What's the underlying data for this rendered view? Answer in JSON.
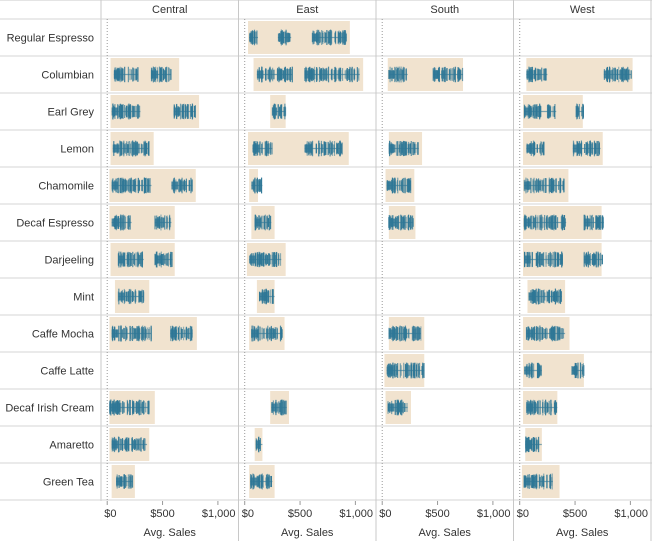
{
  "chart_data": {
    "type": "strip",
    "regions": [
      "Central",
      "East",
      "South",
      "West"
    ],
    "products": [
      "Regular Espresso",
      "Columbian",
      "Earl Grey",
      "Lemon",
      "Chamomile",
      "Decaf Espresso",
      "Darjeeling",
      "Mint",
      "Caffe Mocha",
      "Caffe Latte",
      "Decaf Irish Cream",
      "Amaretto",
      "Green Tea"
    ],
    "xlabel": "Avg. Sales",
    "xlim": [
      -20,
      1150
    ],
    "xticks": [
      0,
      500,
      1000
    ],
    "xtick_labels": [
      "$0",
      "$500",
      "$1,000"
    ],
    "band_color": "#f1e3cf",
    "mark_color": "#2e7796",
    "reference_line": 0,
    "ranges": {
      "Central": [
        null,
        [
          30,
          650
        ],
        [
          30,
          830
        ],
        [
          30,
          420
        ],
        [
          20,
          800
        ],
        [
          20,
          610
        ],
        [
          30,
          610
        ],
        [
          70,
          380
        ],
        [
          20,
          810
        ],
        null,
        [
          20,
          430
        ],
        [
          20,
          380
        ],
        [
          40,
          250
        ]
      ],
      "East": [
        [
          30,
          950
        ],
        [
          80,
          1070
        ],
        [
          230,
          370
        ],
        [
          30,
          940
        ],
        [
          40,
          120
        ],
        [
          60,
          270
        ],
        [
          20,
          370
        ],
        [
          110,
          270
        ],
        [
          40,
          360
        ],
        null,
        [
          230,
          400
        ],
        [
          90,
          160
        ],
        [
          40,
          270
        ]
      ],
      "South": [
        null,
        [
          50,
          730
        ],
        null,
        [
          60,
          360
        ],
        [
          30,
          290
        ],
        [
          60,
          300
        ],
        null,
        null,
        [
          60,
          380
        ],
        [
          20,
          380
        ],
        [
          30,
          260
        ],
        null,
        null
      ],
      "West": [
        [
          null,
          null
        ],
        [
          60,
          1020
        ],
        [
          30,
          570
        ],
        [
          30,
          750
        ],
        [
          30,
          440
        ],
        [
          30,
          740
        ],
        [
          30,
          740
        ],
        [
          70,
          410
        ],
        [
          30,
          450
        ],
        [
          30,
          580
        ],
        [
          30,
          340
        ],
        [
          50,
          200
        ],
        [
          20,
          360
        ]
      ]
    },
    "clusters": {
      "Central": [
        [],
        [
          [
            60,
            280
          ],
          [
            400,
            580
          ]
        ],
        [
          [
            40,
            300
          ],
          [
            600,
            800
          ]
        ],
        [
          [
            50,
            380
          ]
        ],
        [
          [
            40,
            400
          ],
          [
            580,
            770
          ]
        ],
        [
          [
            40,
            220
          ],
          [
            430,
            580
          ]
        ],
        [
          [
            100,
            330
          ],
          [
            430,
            590
          ]
        ],
        [
          [
            100,
            330
          ]
        ],
        [
          [
            40,
            400
          ],
          [
            570,
            770
          ]
        ],
        [],
        [
          [
            20,
            380
          ]
        ],
        [
          [
            40,
            360
          ]
        ],
        [
          [
            80,
            230
          ]
        ]
      ],
      "East": [
        [
          [
            40,
            120
          ],
          [
            300,
            420
          ],
          [
            610,
            920
          ]
        ],
        [
          [
            110,
            430
          ],
          [
            540,
            1040
          ]
        ],
        [
          [
            250,
            370
          ]
        ],
        [
          [
            70,
            250
          ],
          [
            540,
            880
          ]
        ],
        [
          [
            60,
            160
          ]
        ],
        [
          [
            90,
            240
          ]
        ],
        [
          [
            40,
            330
          ]
        ],
        [
          [
            130,
            270
          ]
        ],
        [
          [
            60,
            340
          ]
        ],
        [],
        [
          [
            240,
            380
          ]
        ],
        [
          [
            100,
            160
          ]
        ],
        [
          [
            50,
            250
          ]
        ]
      ],
      "South": [
        [],
        [
          [
            60,
            230
          ],
          [
            460,
            730
          ]
        ],
        [],
        [
          [
            60,
            330
          ]
        ],
        [
          [
            40,
            260
          ]
        ],
        [
          [
            60,
            280
          ]
        ],
        [],
        [],
        [
          [
            60,
            350
          ]
        ],
        [
          [
            40,
            380
          ]
        ],
        [
          [
            50,
            230
          ]
        ],
        [],
        []
      ],
      "West": [
        [],
        [
          [
            60,
            250
          ],
          [
            760,
            1010
          ]
        ],
        [
          [
            40,
            330
          ],
          [
            510,
            580
          ]
        ],
        [
          [
            60,
            220
          ],
          [
            480,
            730
          ]
        ],
        [
          [
            40,
            400
          ]
        ],
        [
          [
            40,
            420
          ],
          [
            580,
            760
          ]
        ],
        [
          [
            40,
            390
          ],
          [
            580,
            750
          ]
        ],
        [
          [
            80,
            380
          ]
        ],
        [
          [
            60,
            410
          ]
        ],
        [
          [
            40,
            200
          ],
          [
            470,
            580
          ]
        ],
        [
          [
            60,
            340
          ]
        ],
        [
          [
            50,
            200
          ]
        ],
        [
          [
            40,
            300
          ]
        ]
      ]
    }
  }
}
